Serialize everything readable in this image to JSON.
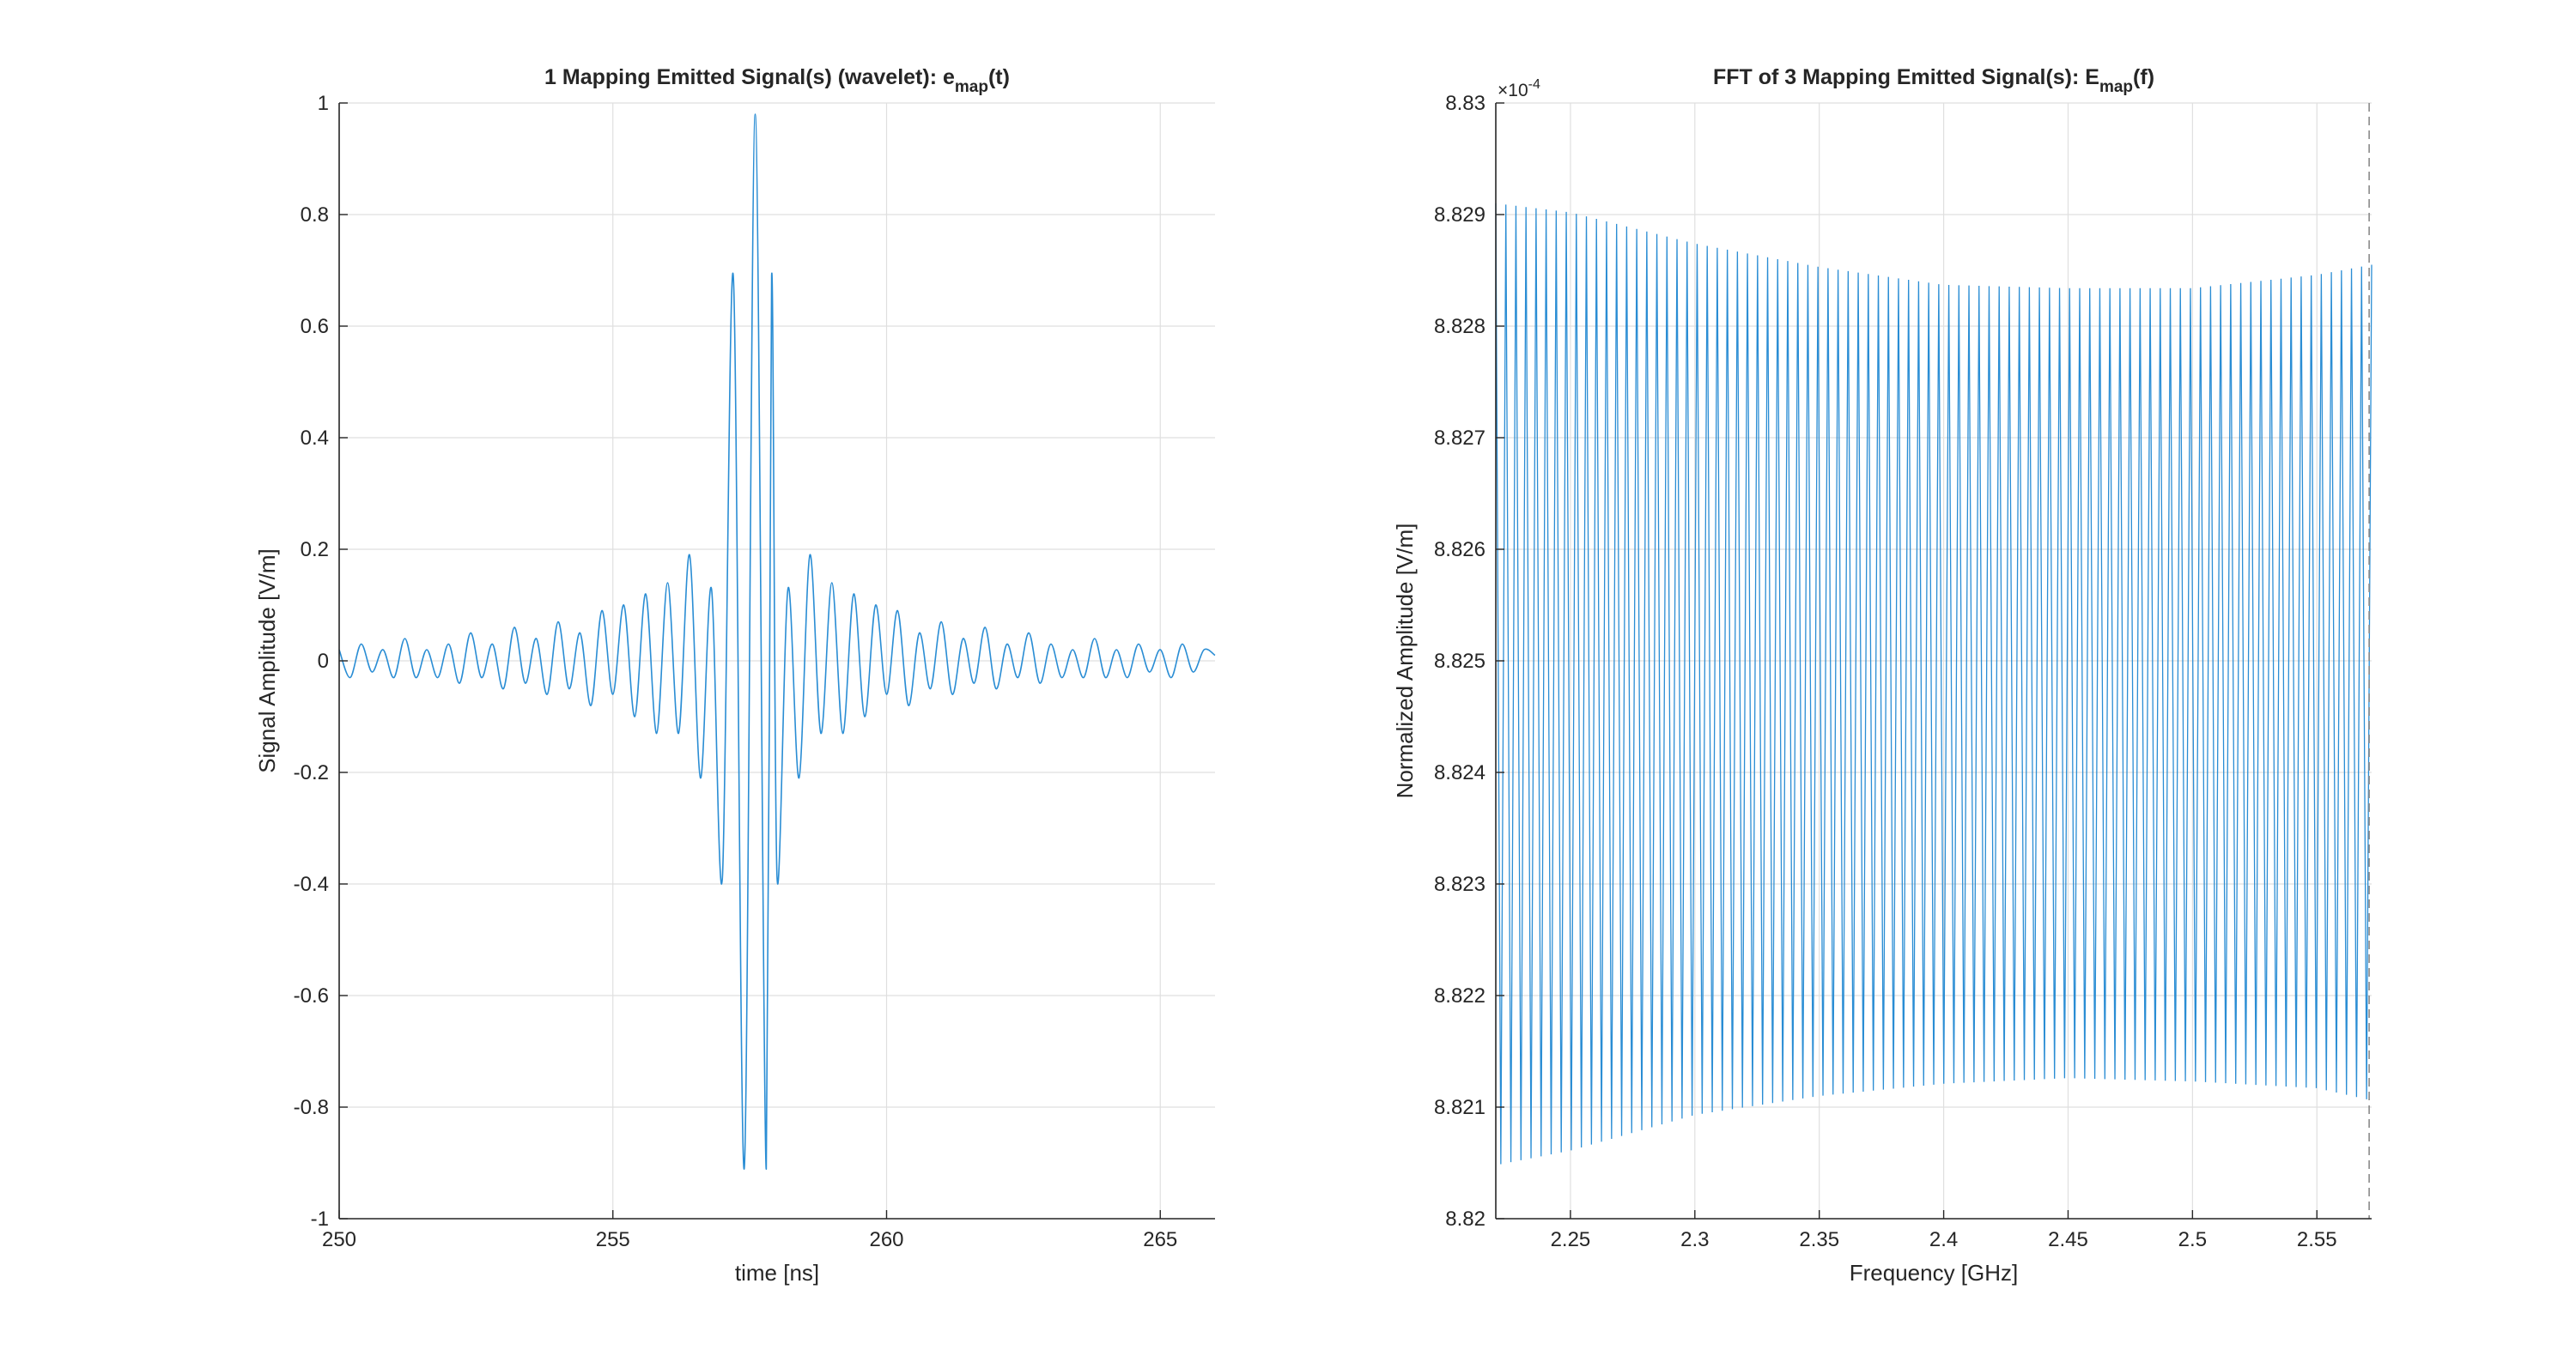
{
  "colors": {
    "line": "#2a8dd4",
    "axis": "#262626",
    "grid": "#dfdfdf",
    "background": "#ffffff"
  },
  "chart_data": [
    {
      "type": "line",
      "title": {
        "prefix": "1 Mapping Emitted Signal(s) (wavelet): e",
        "subscript": "map",
        "suffix": "(t)"
      },
      "xlabel": "time [ns]",
      "ylabel": "Signal Amplitude [V/m]",
      "xlim": [
        250,
        266
      ],
      "ylim": [
        -1,
        1
      ],
      "xticks": [
        250,
        255,
        260,
        265
      ],
      "xtick_labels": [
        "250",
        "255",
        "260",
        "265"
      ],
      "yticks": [
        -1,
        -0.8,
        -0.6,
        -0.4,
        -0.2,
        0,
        0.2,
        0.4,
        0.6,
        0.8,
        1
      ],
      "ytick_labels": [
        "-1",
        "-0.8",
        "-0.6",
        "-0.4",
        "-0.2",
        "0",
        "0.2",
        "0.4",
        "0.6",
        "0.8",
        "1"
      ],
      "grid": true,
      "series": [
        {
          "x": [
            250.0,
            250.2,
            250.4,
            250.6,
            250.8,
            251.0,
            251.2,
            251.4,
            251.6,
            251.8,
            252.0,
            252.2,
            252.4,
            252.6,
            252.8,
            253.0,
            253.2,
            253.4,
            253.6,
            253.8,
            254.0,
            254.2,
            254.4,
            254.6,
            254.8,
            255.0,
            255.2,
            255.4,
            255.6,
            255.8,
            256.0,
            256.2,
            256.4,
            256.6,
            256.8,
            257.0,
            257.2,
            257.4,
            257.6,
            257.8,
            257.9,
            258.0,
            258.2,
            258.4,
            258.6,
            258.8,
            259.0,
            259.2,
            259.4,
            259.6,
            259.8,
            260.0,
            260.2,
            260.4,
            260.6,
            260.8,
            261.0,
            261.2,
            261.4,
            261.6,
            261.8,
            262.0,
            262.2,
            262.4,
            262.6,
            262.8,
            263.0,
            263.2,
            263.4,
            263.6,
            263.8,
            264.0,
            264.2,
            264.4,
            264.6,
            264.8,
            265.0,
            265.2,
            265.4,
            265.6,
            265.8,
            266.0
          ],
          "y": [
            0.02,
            -0.03,
            0.03,
            -0.02,
            0.02,
            -0.03,
            0.04,
            -0.03,
            0.02,
            -0.03,
            0.03,
            -0.04,
            0.05,
            -0.03,
            0.03,
            -0.05,
            0.06,
            -0.04,
            0.04,
            -0.06,
            0.07,
            -0.05,
            0.05,
            -0.08,
            0.09,
            -0.06,
            0.1,
            -0.1,
            0.12,
            -0.13,
            0.14,
            -0.13,
            0.19,
            -0.21,
            0.13,
            -0.39,
            0.69,
            -0.91,
            0.98,
            -0.91,
            0.69,
            -0.39,
            0.13,
            -0.21,
            0.19,
            -0.13,
            0.14,
            -0.13,
            0.12,
            -0.1,
            0.1,
            -0.06,
            0.09,
            -0.08,
            0.05,
            -0.05,
            0.07,
            -0.06,
            0.04,
            -0.04,
            0.06,
            -0.05,
            0.03,
            -0.03,
            0.05,
            -0.04,
            0.03,
            -0.03,
            0.02,
            -0.03,
            0.04,
            -0.03,
            0.02,
            -0.03,
            0.03,
            -0.02,
            0.02,
            -0.03,
            0.03,
            -0.02,
            0.02,
            0.01
          ]
        }
      ]
    },
    {
      "type": "line",
      "title": {
        "prefix": "FFT of 3 Mapping Emitted Signal(s): E",
        "subscript": "map",
        "suffix": "(f)"
      },
      "xlabel": "Frequency [GHz]",
      "ylabel": "Normalized Amplitude [V/m]",
      "y_exponent": "×10",
      "y_exponent_power": "-4",
      "xlim": [
        2.22,
        2.572
      ],
      "ylim": [
        8.82,
        8.83
      ],
      "xticks": [
        2.25,
        2.3,
        2.35,
        2.4,
        2.45,
        2.5,
        2.55
      ],
      "xtick_labels": [
        "2.25",
        "2.3",
        "2.35",
        "2.4",
        "2.45",
        "2.5",
        "2.55"
      ],
      "yticks": [
        8.82,
        8.821,
        8.822,
        8.823,
        8.824,
        8.825,
        8.826,
        8.827,
        8.828,
        8.829,
        8.83
      ],
      "ytick_labels": [
        "8.82",
        "8.821",
        "8.822",
        "8.823",
        "8.824",
        "8.825",
        "8.826",
        "8.827",
        "8.828",
        "8.829",
        "8.83"
      ],
      "grid": true,
      "oscillation_cycles": 87,
      "marker_line_x": 2.571,
      "envelope": {
        "frequency": [
          2.22,
          2.25,
          2.3,
          2.35,
          2.4,
          2.45,
          2.5,
          2.55,
          2.572
        ],
        "upper": [
          8.8291,
          8.82902,
          8.82874,
          8.82853,
          8.82837,
          8.82834,
          8.82834,
          8.82846,
          8.82855
        ],
        "lower": [
          8.82048,
          8.82061,
          8.82093,
          8.8211,
          8.82121,
          8.82126,
          8.82123,
          8.82117,
          8.82106
        ]
      }
    }
  ]
}
